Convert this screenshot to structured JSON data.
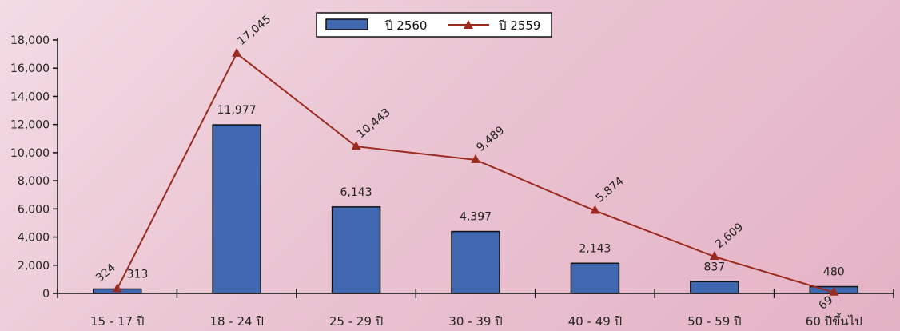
{
  "chart_data": {
    "type": "bar",
    "categories": [
      "15 - 17 ปี",
      "18 - 24 ปี",
      "25 - 29 ปี",
      "30 - 39 ปี",
      "40 - 49 ปี",
      "50 - 59 ปี",
      "60 ปีขึ้นไป"
    ],
    "series": [
      {
        "name": "ปี 2560",
        "type": "bar",
        "values": [
          313,
          11977,
          6143,
          4397,
          2143,
          837,
          480
        ],
        "labels": [
          "313",
          "11,977",
          "6,143",
          "4,397",
          "2,143",
          "837",
          "480"
        ],
        "color": "#4068b0"
      },
      {
        "name": "ปี 2559",
        "type": "line",
        "values": [
          324,
          17045,
          10443,
          9489,
          5874,
          2609,
          69
        ],
        "labels": [
          "324",
          "17,045",
          "10,443",
          "9,489",
          "5,874",
          "2,609",
          "69"
        ],
        "color": "#9b2a1f"
      }
    ],
    "yticks": [
      "0",
      "2,000",
      "4,000",
      "6,000",
      "8,000",
      "10,000",
      "12,000",
      "14,000",
      "16,000",
      "18,000"
    ],
    "ylim": [
      0,
      18000
    ],
    "title": "",
    "xlabel": "",
    "ylabel": "",
    "legend": "top-center",
    "grid": false
  }
}
